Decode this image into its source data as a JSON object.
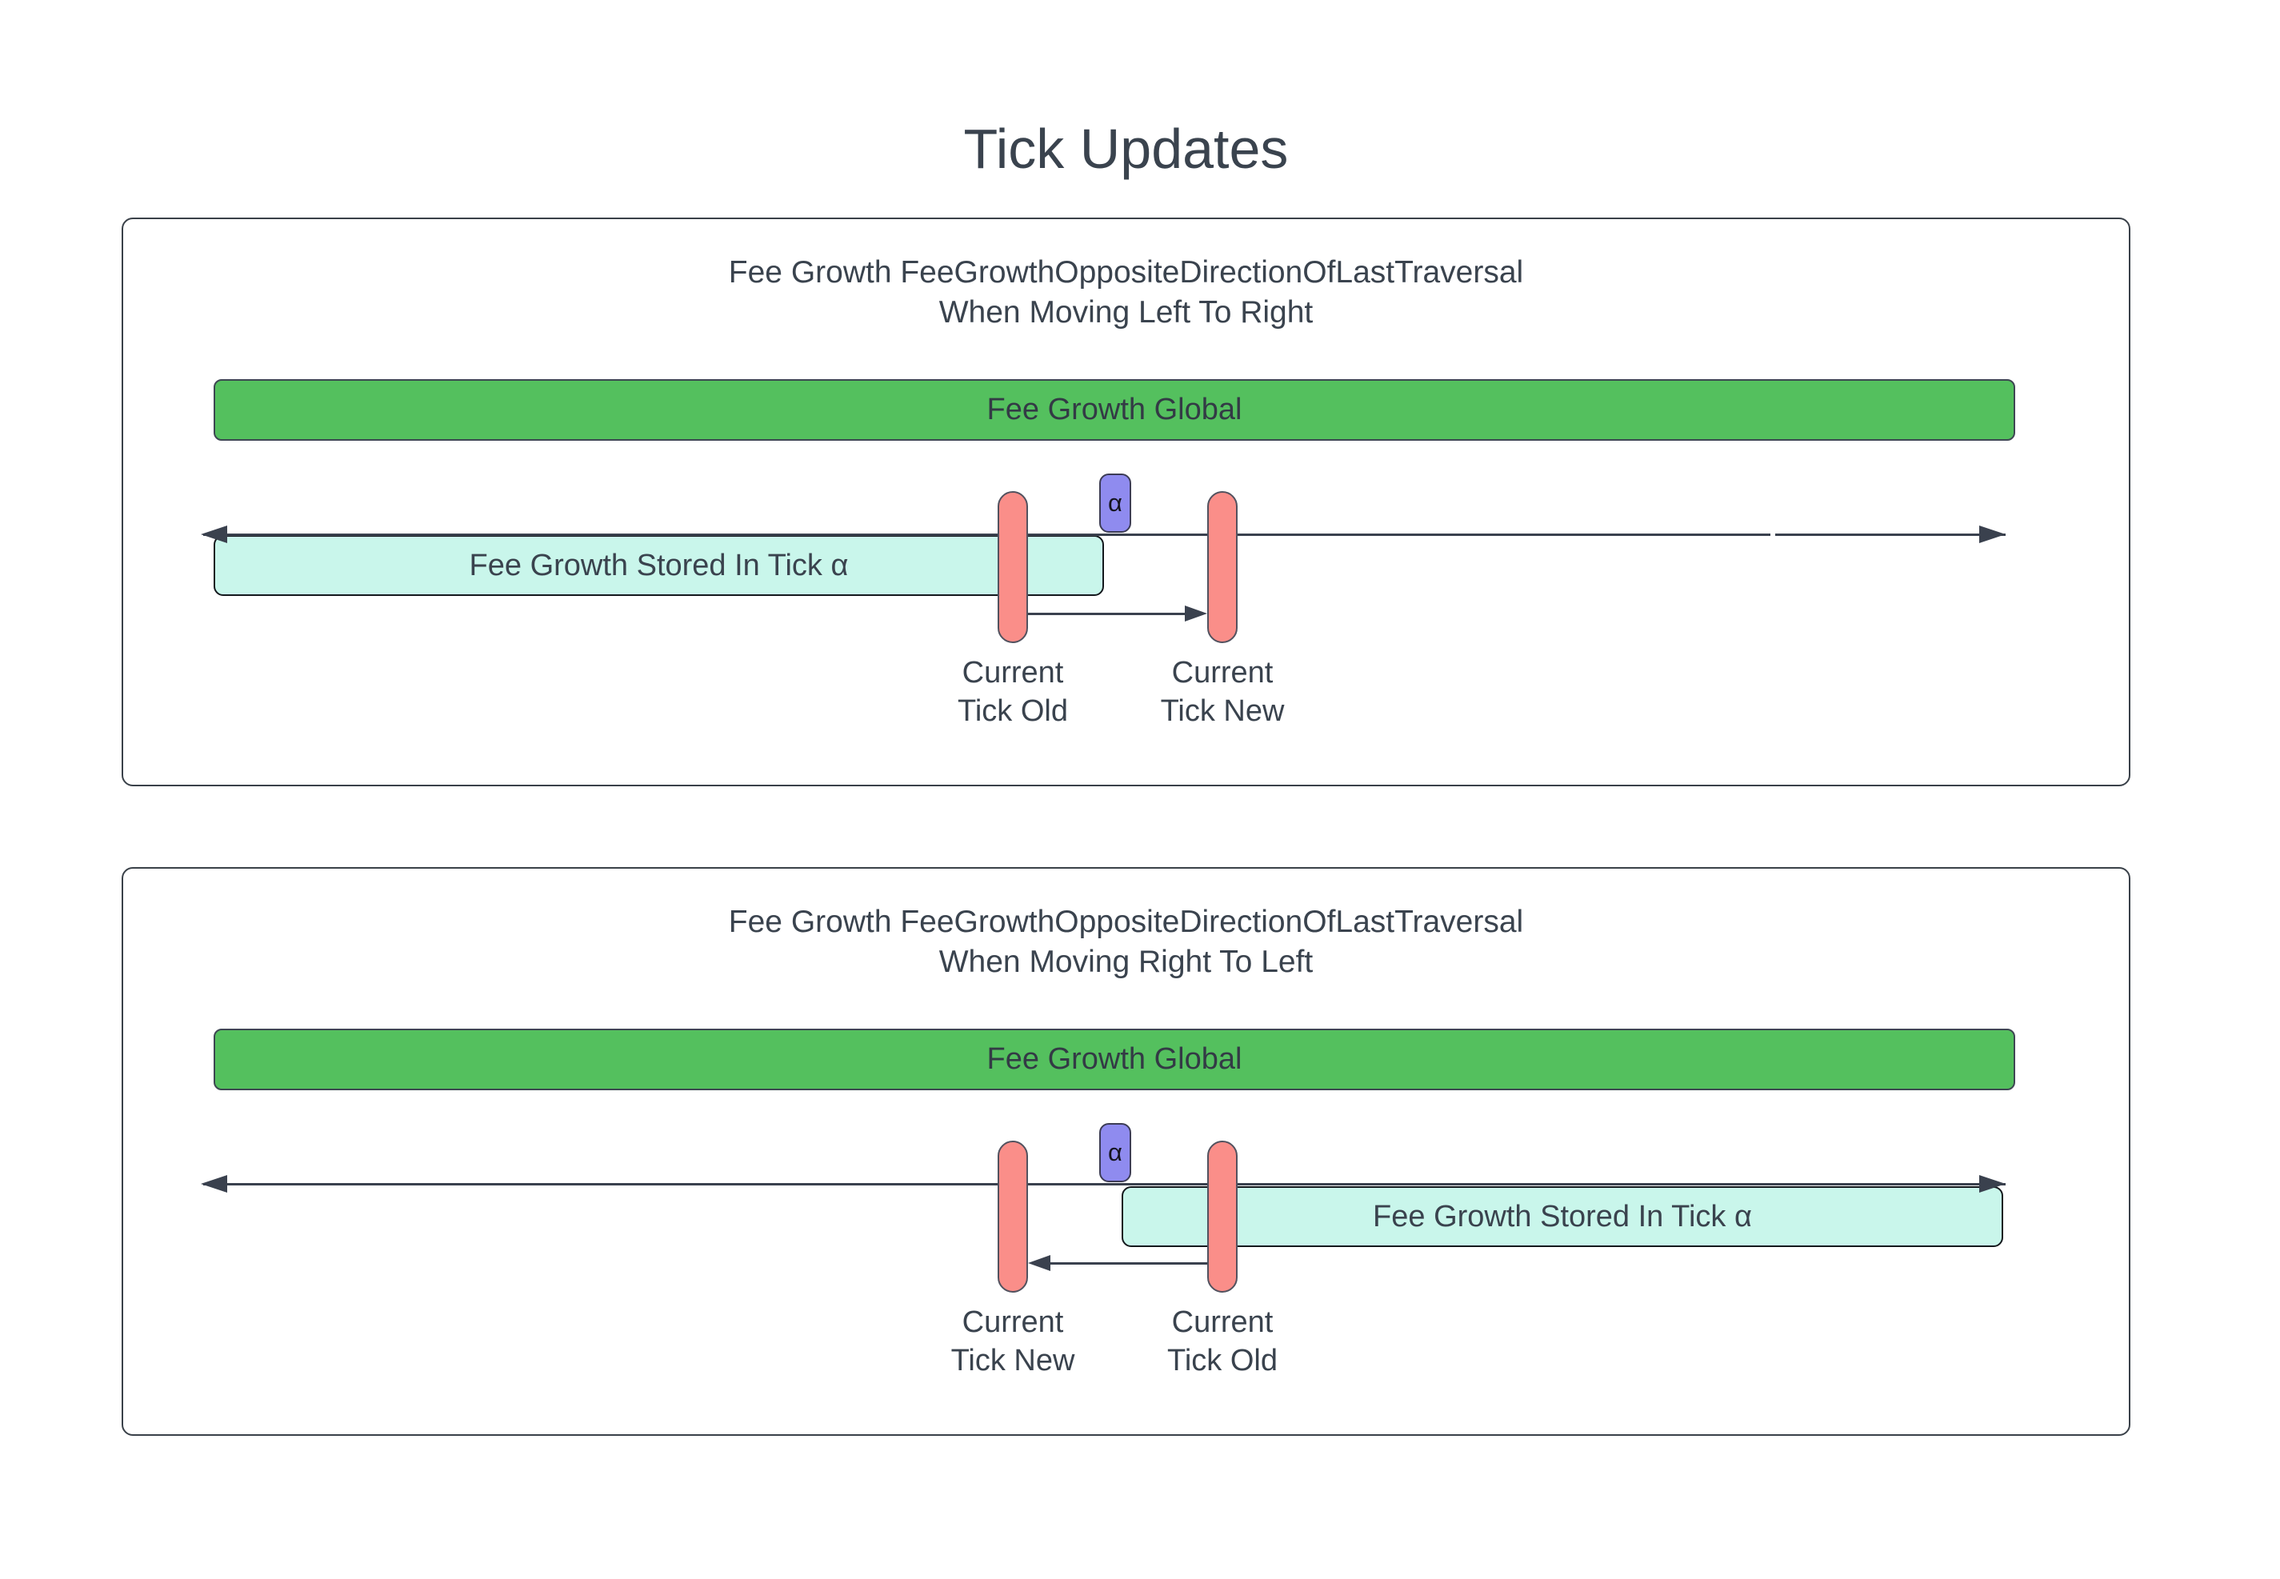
{
  "title": "Tick Updates",
  "colors": {
    "green-fill": "#54C05E",
    "green-border": "#3E4753",
    "pink-fill": "#FA8E89",
    "pink-border": "#52525F",
    "purple-fill": "#8F8BEF",
    "purple-border": "#3C3C55",
    "teal-fill": "#C9F6EB",
    "teal-border": "#14181D",
    "line": "#3A414E",
    "text": "#3A434E",
    "panel-border": "#3A4149"
  },
  "panels": [
    {
      "heading_line1": "Fee Growth FeeGrowthOppositeDirectionOfLastTraversal",
      "heading_line2": "When Moving Left To Right",
      "global_bar_label": "Fee Growth Global",
      "stored_bar_label": "Fee Growth Stored In Tick α",
      "alpha_marker": "α",
      "left_tick_line1": "Current",
      "left_tick_line2": "Tick Old",
      "right_tick_line1": "Current",
      "right_tick_line2": "Tick New"
    },
    {
      "heading_line1": "Fee Growth FeeGrowthOppositeDirectionOfLastTraversal",
      "heading_line2": "When Moving Right To Left",
      "global_bar_label": "Fee Growth Global",
      "stored_bar_label": "Fee Growth Stored In Tick α",
      "alpha_marker": "α",
      "left_tick_line1": "Current",
      "left_tick_line2": "Tick New",
      "right_tick_line1": "Current",
      "right_tick_line2": "Tick Old"
    }
  ]
}
